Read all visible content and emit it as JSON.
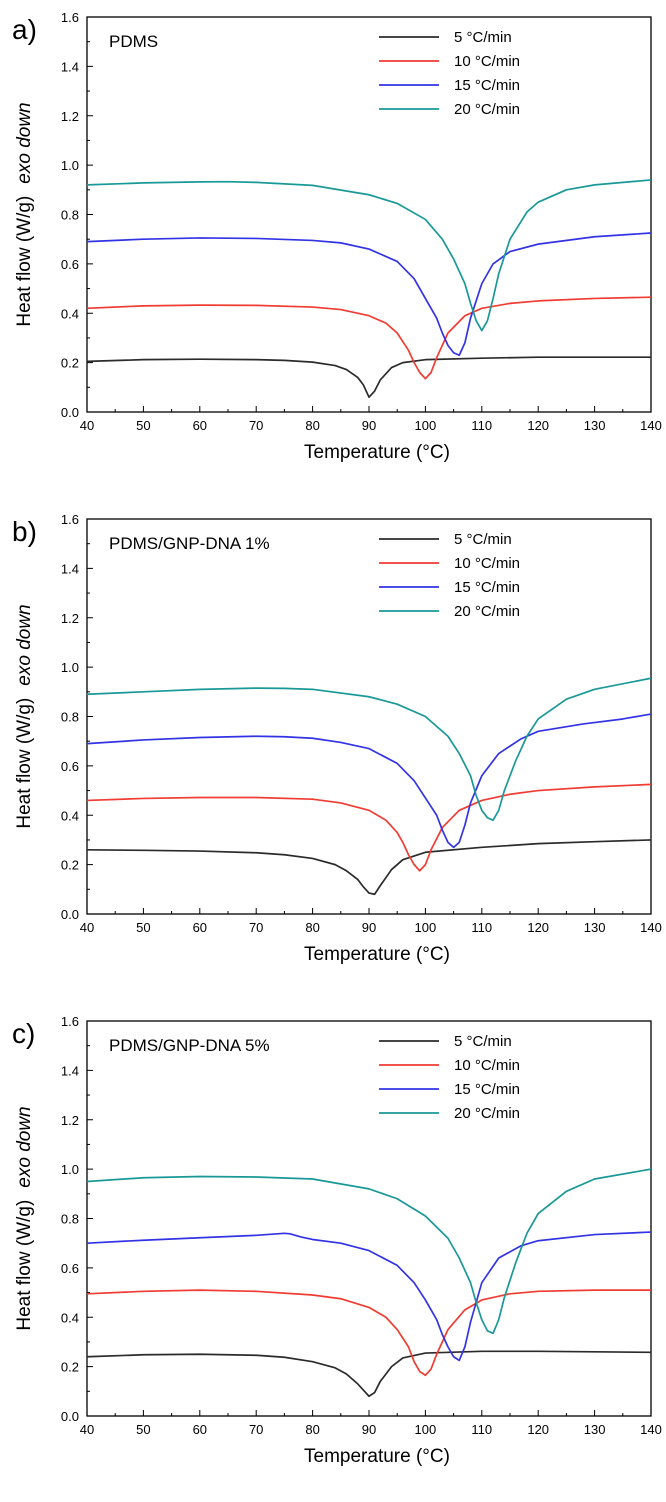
{
  "figure": {
    "panels": [
      {
        "letter": "a)",
        "sample": "PDMS"
      },
      {
        "letter": "b)",
        "sample": "PDMS/GNP-DNA 1%"
      },
      {
        "letter": "c)",
        "sample": "PDMS/GNP-DNA 5%"
      }
    ],
    "ylabel_main": "Heat flow (W/g)",
    "ylabel_italic": "exo down",
    "xlabel": "Temperature (°C)"
  },
  "chart_data": [
    {
      "type": "line",
      "title": "PDMS",
      "xlabel": "Temperature (°C)",
      "ylabel": "Heat flow (W/g)  exo down",
      "xlim": [
        40,
        140
      ],
      "ylim": [
        0.0,
        1.6
      ],
      "xticks": [
        40,
        50,
        60,
        70,
        80,
        90,
        100,
        110,
        120,
        130,
        140
      ],
      "yticks": [
        0.0,
        0.2,
        0.4,
        0.6,
        0.8,
        1.0,
        1.2,
        1.4,
        1.6
      ],
      "legend_position": "top-right",
      "grid": false,
      "series": [
        {
          "name": "5 °C/min",
          "color": "#2b2b2b",
          "x": [
            40,
            50,
            60,
            70,
            75,
            80,
            84,
            86,
            88,
            89,
            90,
            91,
            92,
            94,
            96,
            100,
            110,
            120,
            130,
            140
          ],
          "y": [
            0.205,
            0.212,
            0.214,
            0.212,
            0.209,
            0.202,
            0.188,
            0.172,
            0.14,
            0.11,
            0.06,
            0.085,
            0.13,
            0.18,
            0.2,
            0.212,
            0.218,
            0.222,
            0.222,
            0.222
          ]
        },
        {
          "name": "10 °C/min",
          "color": "#f03c32",
          "x": [
            40,
            50,
            60,
            70,
            80,
            85,
            90,
            93,
            95,
            97,
            98,
            99,
            100,
            101,
            102,
            104,
            107,
            110,
            115,
            120,
            130,
            140
          ],
          "y": [
            0.42,
            0.43,
            0.433,
            0.432,
            0.425,
            0.415,
            0.39,
            0.36,
            0.32,
            0.25,
            0.2,
            0.16,
            0.135,
            0.16,
            0.22,
            0.32,
            0.39,
            0.42,
            0.44,
            0.45,
            0.46,
            0.465
          ]
        },
        {
          "name": "15 °C/min",
          "color": "#3333e6",
          "x": [
            40,
            50,
            60,
            70,
            80,
            85,
            90,
            95,
            98,
            100,
            102,
            103,
            104,
            105,
            106,
            107,
            108,
            110,
            112,
            115,
            120,
            130,
            140
          ],
          "y": [
            0.69,
            0.7,
            0.705,
            0.703,
            0.695,
            0.685,
            0.66,
            0.61,
            0.54,
            0.46,
            0.38,
            0.32,
            0.27,
            0.24,
            0.23,
            0.28,
            0.38,
            0.52,
            0.6,
            0.65,
            0.68,
            0.71,
            0.725
          ]
        },
        {
          "name": "20 °C/min",
          "color": "#1a9898",
          "x": [
            40,
            50,
            60,
            65,
            70,
            80,
            90,
            95,
            100,
            103,
            105,
            107,
            108,
            109,
            110,
            111,
            112,
            113,
            115,
            118,
            120,
            125,
            130,
            140
          ],
          "y": [
            0.92,
            0.928,
            0.932,
            0.933,
            0.93,
            0.918,
            0.88,
            0.845,
            0.78,
            0.7,
            0.62,
            0.52,
            0.44,
            0.37,
            0.33,
            0.37,
            0.46,
            0.56,
            0.7,
            0.81,
            0.85,
            0.9,
            0.92,
            0.94
          ]
        }
      ]
    },
    {
      "type": "line",
      "title": "PDMS/GNP-DNA 1%",
      "xlabel": "Temperature (°C)",
      "ylabel": "Heat flow (W/g)  exo down",
      "xlim": [
        40,
        140
      ],
      "ylim": [
        0.0,
        1.6
      ],
      "xticks": [
        40,
        50,
        60,
        70,
        80,
        90,
        100,
        110,
        120,
        130,
        140
      ],
      "yticks": [
        0.0,
        0.2,
        0.4,
        0.6,
        0.8,
        1.0,
        1.2,
        1.4,
        1.6
      ],
      "legend_position": "top-right",
      "grid": false,
      "series": [
        {
          "name": "5 °C/min",
          "color": "#2b2b2b",
          "x": [
            40,
            50,
            60,
            70,
            75,
            80,
            84,
            86,
            88,
            89,
            90,
            91,
            92,
            94,
            96,
            100,
            110,
            120,
            130,
            140
          ],
          "y": [
            0.26,
            0.258,
            0.255,
            0.248,
            0.24,
            0.225,
            0.2,
            0.175,
            0.14,
            0.11,
            0.085,
            0.08,
            0.115,
            0.18,
            0.22,
            0.25,
            0.27,
            0.285,
            0.293,
            0.3
          ]
        },
        {
          "name": "10 °C/min",
          "color": "#f03c32",
          "x": [
            40,
            50,
            60,
            70,
            80,
            85,
            90,
            93,
            95,
            96,
            97,
            98,
            99,
            100,
            101,
            103,
            106,
            110,
            115,
            120,
            130,
            140
          ],
          "y": [
            0.46,
            0.468,
            0.472,
            0.472,
            0.465,
            0.45,
            0.42,
            0.38,
            0.33,
            0.29,
            0.24,
            0.2,
            0.175,
            0.2,
            0.26,
            0.35,
            0.42,
            0.46,
            0.485,
            0.5,
            0.515,
            0.525
          ]
        },
        {
          "name": "15 °C/min",
          "color": "#3333e6",
          "x": [
            40,
            50,
            60,
            70,
            75,
            80,
            85,
            90,
            95,
            98,
            100,
            102,
            103,
            104,
            105,
            106,
            107,
            108,
            110,
            113,
            117,
            120,
            128,
            135,
            140
          ],
          "y": [
            0.69,
            0.705,
            0.715,
            0.72,
            0.718,
            0.712,
            0.695,
            0.67,
            0.61,
            0.54,
            0.47,
            0.4,
            0.34,
            0.29,
            0.27,
            0.29,
            0.36,
            0.45,
            0.56,
            0.65,
            0.71,
            0.74,
            0.77,
            0.79,
            0.81
          ]
        },
        {
          "name": "20 °C/min",
          "color": "#1a9898",
          "x": [
            40,
            50,
            60,
            70,
            75,
            80,
            90,
            95,
            100,
            104,
            106,
            108,
            109,
            110,
            111,
            112,
            113,
            114,
            116,
            118,
            120,
            125,
            130,
            140
          ],
          "y": [
            0.89,
            0.9,
            0.91,
            0.915,
            0.914,
            0.91,
            0.88,
            0.85,
            0.8,
            0.72,
            0.65,
            0.56,
            0.48,
            0.42,
            0.39,
            0.38,
            0.42,
            0.5,
            0.62,
            0.72,
            0.79,
            0.87,
            0.91,
            0.955
          ]
        }
      ]
    },
    {
      "type": "line",
      "title": "PDMS/GNP-DNA 5%",
      "xlabel": "Temperature (°C)",
      "ylabel": "Heat flow (W/g)  exo down",
      "xlim": [
        40,
        140
      ],
      "ylim": [
        0.0,
        1.6
      ],
      "xticks": [
        40,
        50,
        60,
        70,
        80,
        90,
        100,
        110,
        120,
        130,
        140
      ],
      "yticks": [
        0.0,
        0.2,
        0.4,
        0.6,
        0.8,
        1.0,
        1.2,
        1.4,
        1.6
      ],
      "legend_position": "top-right",
      "grid": false,
      "series": [
        {
          "name": "5 °C/min",
          "color": "#2b2b2b",
          "x": [
            40,
            50,
            60,
            70,
            75,
            80,
            84,
            86,
            88,
            89,
            90,
            91,
            92,
            94,
            96,
            100,
            110,
            120,
            130,
            140
          ],
          "y": [
            0.24,
            0.248,
            0.25,
            0.246,
            0.238,
            0.22,
            0.195,
            0.17,
            0.13,
            0.105,
            0.08,
            0.095,
            0.14,
            0.2,
            0.235,
            0.255,
            0.262,
            0.262,
            0.26,
            0.258
          ]
        },
        {
          "name": "10 °C/min",
          "color": "#f03c32",
          "x": [
            40,
            50,
            60,
            70,
            80,
            85,
            90,
            93,
            95,
            97,
            98,
            99,
            100,
            101,
            102,
            104,
            107,
            110,
            115,
            120,
            130,
            140
          ],
          "y": [
            0.495,
            0.505,
            0.51,
            0.505,
            0.49,
            0.475,
            0.44,
            0.4,
            0.35,
            0.28,
            0.22,
            0.18,
            0.165,
            0.19,
            0.25,
            0.35,
            0.43,
            0.47,
            0.495,
            0.505,
            0.51,
            0.51
          ]
        },
        {
          "name": "15 °C/min",
          "color": "#3333e6",
          "x": [
            40,
            50,
            60,
            70,
            75,
            76,
            78,
            80,
            85,
            90,
            95,
            98,
            100,
            102,
            103,
            104,
            105,
            106,
            107,
            108,
            110,
            113,
            117,
            120,
            130,
            140
          ],
          "y": [
            0.7,
            0.712,
            0.722,
            0.732,
            0.74,
            0.738,
            0.725,
            0.715,
            0.7,
            0.67,
            0.61,
            0.54,
            0.47,
            0.39,
            0.33,
            0.28,
            0.24,
            0.225,
            0.28,
            0.38,
            0.54,
            0.64,
            0.69,
            0.71,
            0.735,
            0.745
          ]
        },
        {
          "name": "20 °C/min",
          "color": "#1a9898",
          "x": [
            40,
            50,
            60,
            70,
            80,
            90,
            95,
            100,
            104,
            106,
            108,
            109,
            110,
            111,
            112,
            113,
            114,
            116,
            118,
            120,
            125,
            130,
            140
          ],
          "y": [
            0.95,
            0.965,
            0.97,
            0.968,
            0.96,
            0.92,
            0.88,
            0.81,
            0.72,
            0.64,
            0.54,
            0.46,
            0.39,
            0.345,
            0.335,
            0.39,
            0.48,
            0.62,
            0.74,
            0.82,
            0.91,
            0.96,
            1.0
          ]
        }
      ]
    }
  ]
}
